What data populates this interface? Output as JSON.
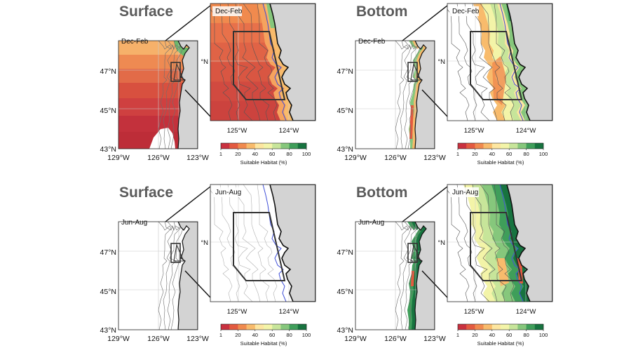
{
  "figure": {
    "panels": [
      {
        "id": "surface-winter",
        "title": "Surface",
        "season": "Dec-Feb",
        "fill": "warm",
        "coverage": "full",
        "overview_lat_labels": [
          "47°N",
          "45°N",
          "43°N"
        ],
        "overview_lon_labels": [
          "129°W",
          "126°W",
          "123°W"
        ],
        "zoom_lon_labels": [
          "125°W",
          "124°W"
        ],
        "zoom_lat_label": "°N"
      },
      {
        "id": "bottom-winter",
        "title": "Bottom",
        "season": "Dec-Feb",
        "fill": "nearshore-band",
        "coverage": "band",
        "overview_lat_labels": [
          "47°N",
          "45°N",
          "43°N"
        ],
        "overview_lon_labels": [
          "129°W",
          "126°W",
          "123°W"
        ],
        "zoom_lon_labels": [
          "125°W",
          "124°W"
        ],
        "zoom_lat_label": "°N"
      },
      {
        "id": "surface-summer",
        "title": "Surface",
        "season": "Jun-Aug",
        "fill": "none",
        "coverage": "none",
        "overview_lat_labels": [
          "47°N",
          "45°N",
          "43°N"
        ],
        "overview_lon_labels": [
          "129°W",
          "126°W",
          "123°W"
        ],
        "zoom_lon_labels": [
          "125°W",
          "124°W"
        ],
        "zoom_lat_label": "°N"
      },
      {
        "id": "bottom-summer",
        "title": "Bottom",
        "season": "Jun-Aug",
        "fill": "nearshore-band-green",
        "coverage": "band-wide",
        "overview_lat_labels": [
          "47°N",
          "45°N",
          "43°N"
        ],
        "overview_lon_labels": [
          "129°W",
          "126°W",
          "123°W"
        ],
        "zoom_lon_labels": [
          "125°W",
          "124°W"
        ],
        "zoom_lat_label": "°N"
      }
    ],
    "colorbar": {
      "label": "Suitable Habitat (%)",
      "ticks": [
        "1",
        "20",
        "40",
        "60",
        "80",
        "100"
      ],
      "colors": [
        "#c9313f",
        "#e35a40",
        "#f08a4e",
        "#f8bb6c",
        "#fde6a0",
        "#f3f4a8",
        "#c7e59a",
        "#86c77c",
        "#3f9e5a",
        "#17733f"
      ]
    },
    "colors": {
      "land": "#d3d3d3",
      "coastline": "#111111",
      "contour": "#6e6e6e",
      "isobath_blue": "#4050d8",
      "box": "#333333"
    }
  }
}
